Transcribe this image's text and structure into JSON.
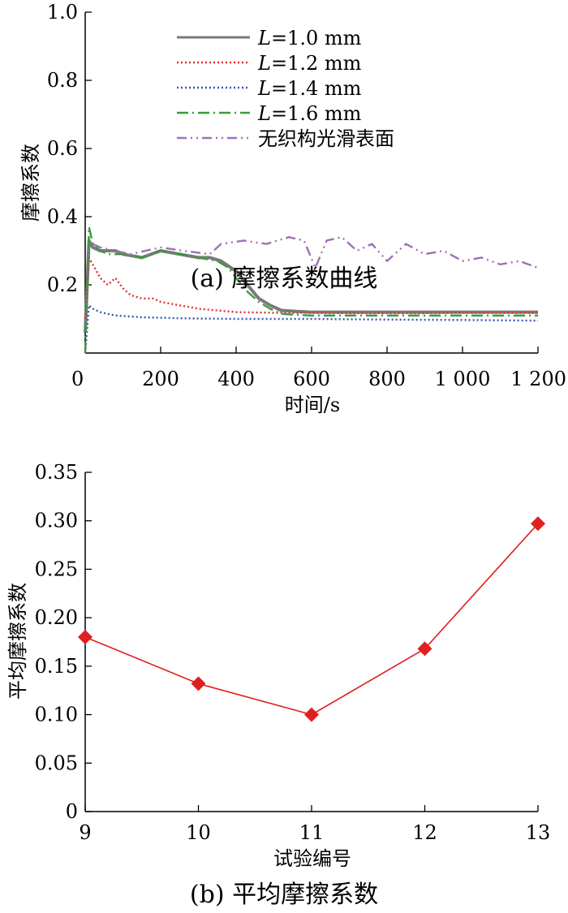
{
  "figure": {
    "caption_a": "(a)  摩擦系数曲线",
    "caption_b": "(b)  平均摩擦系数"
  },
  "chart_data": [
    {
      "type": "line",
      "xlabel": "时间/s",
      "ylabel": "摩擦系数",
      "xlim": [
        0,
        1200
      ],
      "ylim": [
        0,
        1.0
      ],
      "x_ticks": [
        0,
        200,
        400,
        600,
        800,
        1000,
        1200
      ],
      "x_tick_labels": [
        "0",
        "200",
        "400",
        "600",
        "800",
        "1 000",
        "1 200"
      ],
      "y_ticks": [
        0.2,
        0.4,
        0.6,
        0.8,
        1.0
      ],
      "y_tick_labels": [
        "0.2",
        "0.4",
        "0.6",
        "0.8",
        "1.0"
      ],
      "legend_position": "top-center",
      "grid": false,
      "series": [
        {
          "name": "L=1.0 mm",
          "legend_italic": "L",
          "legend_rest": "=1.0 mm",
          "color": "#7a7a7a",
          "style": "solid",
          "x": [
            0,
            10,
            20,
            40,
            60,
            80,
            100,
            150,
            200,
            250,
            300,
            330,
            360,
            400,
            430,
            460,
            490,
            520,
            560,
            600,
            700,
            800,
            900,
            1000,
            1100,
            1200
          ],
          "y": [
            0.06,
            0.33,
            0.31,
            0.3,
            0.3,
            0.3,
            0.29,
            0.28,
            0.3,
            0.29,
            0.28,
            0.28,
            0.27,
            0.24,
            0.2,
            0.16,
            0.14,
            0.125,
            0.122,
            0.12,
            0.12,
            0.12,
            0.12,
            0.12,
            0.12,
            0.12
          ]
        },
        {
          "name": "L=1.2 mm",
          "legend_italic": "L",
          "legend_rest": "=1.2 mm",
          "color": "#e03030",
          "style": "dotted",
          "x": [
            0,
            10,
            20,
            40,
            60,
            80,
            100,
            120,
            150,
            180,
            200,
            250,
            300,
            350,
            400,
            500,
            600,
            700,
            800,
            900,
            1000,
            1100,
            1200
          ],
          "y": [
            0.1,
            0.28,
            0.26,
            0.22,
            0.2,
            0.22,
            0.19,
            0.17,
            0.16,
            0.16,
            0.15,
            0.14,
            0.13,
            0.125,
            0.12,
            0.118,
            0.118,
            0.117,
            0.117,
            0.117,
            0.118,
            0.118,
            0.118
          ]
        },
        {
          "name": "L=1.4 mm",
          "legend_italic": "L",
          "legend_rest": "=1.4 mm",
          "color": "#3a55b5",
          "style": "dotted",
          "x": [
            0,
            10,
            20,
            40,
            80,
            150,
            250,
            400,
            600,
            800,
            1000,
            1200
          ],
          "y": [
            0.0,
            0.14,
            0.13,
            0.12,
            0.11,
            0.105,
            0.102,
            0.1,
            0.1,
            0.098,
            0.097,
            0.095
          ]
        },
        {
          "name": "L=1.6 mm",
          "legend_italic": "L",
          "legend_rest": "=1.6 mm",
          "color": "#3a9a3a",
          "style": "dashdot",
          "x": [
            0,
            10,
            20,
            40,
            60,
            80,
            100,
            150,
            200,
            250,
            300,
            350,
            380,
            400,
            430,
            460,
            490,
            520,
            560,
            600,
            800,
            1000,
            1200
          ],
          "y": [
            0.0,
            0.37,
            0.32,
            0.3,
            0.29,
            0.29,
            0.29,
            0.28,
            0.3,
            0.29,
            0.28,
            0.27,
            0.25,
            0.22,
            0.18,
            0.15,
            0.13,
            0.115,
            0.112,
            0.11,
            0.11,
            0.11,
            0.11
          ]
        },
        {
          "name": "无织构光滑表面",
          "legend_italic": "",
          "legend_rest": "无织构光滑表面",
          "color": "#a070b8",
          "style": "dashdotdot",
          "x": [
            20,
            40,
            80,
            120,
            200,
            260,
            330,
            360,
            420,
            480,
            540,
            580,
            610,
            640,
            680,
            720,
            760,
            800,
            850,
            900,
            950,
            1000,
            1050,
            1100,
            1150,
            1200
          ],
          "y": [
            0.32,
            0.31,
            0.3,
            0.29,
            0.31,
            0.3,
            0.29,
            0.32,
            0.33,
            0.32,
            0.34,
            0.33,
            0.25,
            0.33,
            0.34,
            0.3,
            0.32,
            0.27,
            0.32,
            0.29,
            0.3,
            0.27,
            0.28,
            0.26,
            0.27,
            0.25
          ]
        }
      ]
    },
    {
      "type": "line",
      "xlabel": "试验编号",
      "ylabel": "平均摩擦系数",
      "xlim": [
        9,
        13
      ],
      "ylim": [
        0,
        0.35
      ],
      "x_ticks": [
        9,
        10,
        11,
        12,
        13
      ],
      "x_tick_labels": [
        "9",
        "10",
        "11",
        "12",
        "13"
      ],
      "y_ticks": [
        0,
        0.05,
        0.1,
        0.15,
        0.2,
        0.25,
        0.3,
        0.35
      ],
      "y_tick_labels": [
        "0",
        "0.05",
        "0.10",
        "0.15",
        "0.20",
        "0.25",
        "0.30",
        "0.35"
      ],
      "grid": false,
      "marker": "diamond",
      "color": "#e02020",
      "x": [
        9,
        10,
        11,
        12,
        13
      ],
      "y": [
        0.18,
        0.132,
        0.1,
        0.168,
        0.297
      ]
    }
  ]
}
